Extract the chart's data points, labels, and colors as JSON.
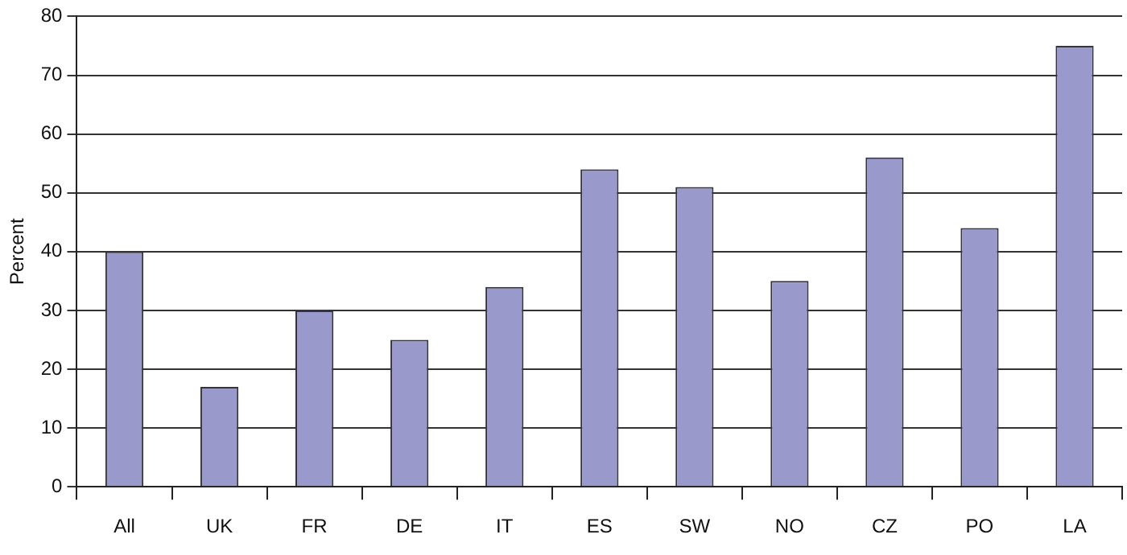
{
  "chart_data": {
    "type": "bar",
    "ylabel": "Percent",
    "categories": [
      "All",
      "UK",
      "FR",
      "DE",
      "IT",
      "ES",
      "SW",
      "NO",
      "CZ",
      "PO",
      "LA"
    ],
    "values": [
      40,
      17,
      30,
      25,
      34,
      54,
      51,
      35,
      56,
      44,
      75
    ],
    "color": "#9999cc",
    "ylim": [
      0,
      80
    ],
    "yticks": [
      0,
      10,
      20,
      30,
      40,
      50,
      60,
      70,
      80
    ],
    "grid": "y"
  }
}
